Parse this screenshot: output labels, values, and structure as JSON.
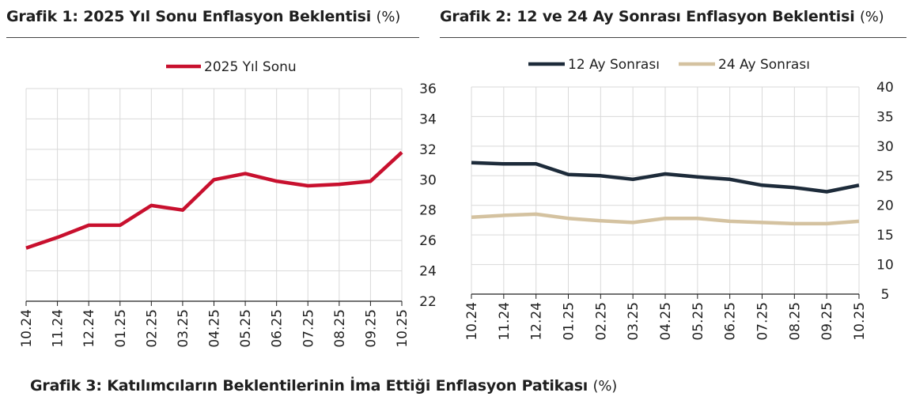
{
  "titles": {
    "chart1": "Grafik 1: 2025 Yıl Sonu Enflasyon Beklentisi",
    "chart1_unit": "(%)",
    "chart2": "Grafik 2: 12 ve 24 Ay Sonrası Enflasyon Beklentisi",
    "chart2_unit": "(%)",
    "chart3": "Grafik 3: Katılımcıların Beklentilerinin İma Ettiği Enflasyon Patikası",
    "chart3_unit": "(%)"
  },
  "colors": {
    "series_2025": "#c8102e",
    "series_12": "#1d2b3a",
    "series_24": "#d4c2a0",
    "grid": "#d9d9d9",
    "axis": "#1f1f1f"
  },
  "chart_data": [
    {
      "type": "line",
      "title": "Grafik 1: 2025 Yıl Sonu Enflasyon Beklentisi",
      "categories": [
        "10.24",
        "11.24",
        "12.24",
        "01.25",
        "02.25",
        "03.25",
        "04.25",
        "05.25",
        "06.25",
        "07.25",
        "08.25",
        "09.25",
        "10.25"
      ],
      "series": [
        {
          "name": "2025 Yıl Sonu",
          "values": [
            25.5,
            26.2,
            27.0,
            27.0,
            28.3,
            28.0,
            30.0,
            30.4,
            29.9,
            29.6,
            29.7,
            29.9,
            31.8
          ]
        }
      ],
      "ylim": [
        22,
        36
      ],
      "yticks": [
        22,
        24,
        26,
        28,
        30,
        32,
        34,
        36
      ],
      "y_axis_side": "right",
      "grid": true,
      "legend": "top"
    },
    {
      "type": "line",
      "title": "Grafik 2: 12 ve 24 Ay Sonrası Enflasyon Beklentisi",
      "categories": [
        "10.24",
        "11.24",
        "12.24",
        "01.25",
        "02.25",
        "03.25",
        "04.25",
        "05.25",
        "06.25",
        "07.25",
        "08.25",
        "09.25",
        "10.25"
      ],
      "series": [
        {
          "name": "12 Ay Sonrası",
          "values": [
            27.2,
            27.0,
            27.0,
            25.2,
            25.0,
            24.4,
            25.3,
            24.8,
            24.4,
            23.4,
            23.0,
            22.3,
            23.4
          ]
        },
        {
          "name": "24 Ay Sonrası",
          "values": [
            18.0,
            18.3,
            18.5,
            17.8,
            17.4,
            17.1,
            17.8,
            17.8,
            17.3,
            17.1,
            16.9,
            16.9,
            17.3
          ]
        }
      ],
      "ylim": [
        5,
        40
      ],
      "yticks": [
        5,
        10,
        15,
        20,
        25,
        30,
        35,
        40
      ],
      "y_axis_side": "right",
      "grid": true,
      "legend": "top"
    }
  ]
}
